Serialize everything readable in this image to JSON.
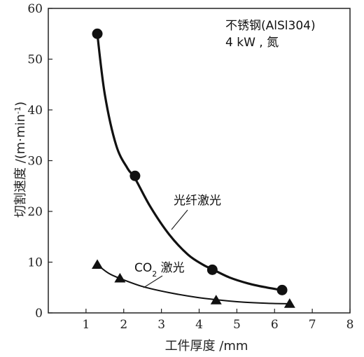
{
  "chart_data": {
    "type": "line",
    "xlabel": "工件厚度 /mm",
    "ylabel_main": "切割速度 /(m·min",
    "ylabel_sup": "-1",
    "ylabel_close": ")",
    "xlim": [
      0,
      8
    ],
    "ylim": [
      0,
      60
    ],
    "xticks": [
      1,
      2,
      3,
      4,
      5,
      6,
      7,
      8
    ],
    "yticks": [
      0,
      10,
      20,
      30,
      40,
      50,
      60
    ],
    "grid": false,
    "annotation_lines": [
      "不锈钢(AlSl304)",
      "4 kW , 氮"
    ],
    "series": [
      {
        "name": "光纤激光",
        "marker": "circle",
        "x": [
          1.3,
          2.3,
          4.35,
          6.2
        ],
        "y": [
          55,
          27,
          8.5,
          4.5
        ],
        "curve_x": [
          1.3,
          1.5,
          1.8,
          2.1,
          2.3,
          2.7,
          3.2,
          3.7,
          4.1,
          4.35,
          4.8,
          5.3,
          5.8,
          6.2
        ],
        "curve_y": [
          55,
          43,
          33,
          28.5,
          26.5,
          21,
          15.5,
          11.5,
          9.5,
          8.6,
          7,
          5.8,
          5,
          4.5
        ]
      },
      {
        "name_main": "CO",
        "name_sub": "2",
        "name_rest": " 激光",
        "marker": "triangle",
        "x": [
          1.3,
          1.9,
          4.45,
          6.4
        ],
        "y": [
          9.5,
          6.8,
          2.5,
          1.8
        ],
        "curve_x": [
          1.3,
          1.6,
          1.9,
          2.5,
          3.2,
          3.9,
          4.45,
          5.2,
          5.8,
          6.4
        ],
        "curve_y": [
          9.5,
          7.8,
          6.8,
          5.2,
          4.0,
          3.1,
          2.6,
          2.1,
          1.9,
          1.8
        ]
      }
    ]
  }
}
